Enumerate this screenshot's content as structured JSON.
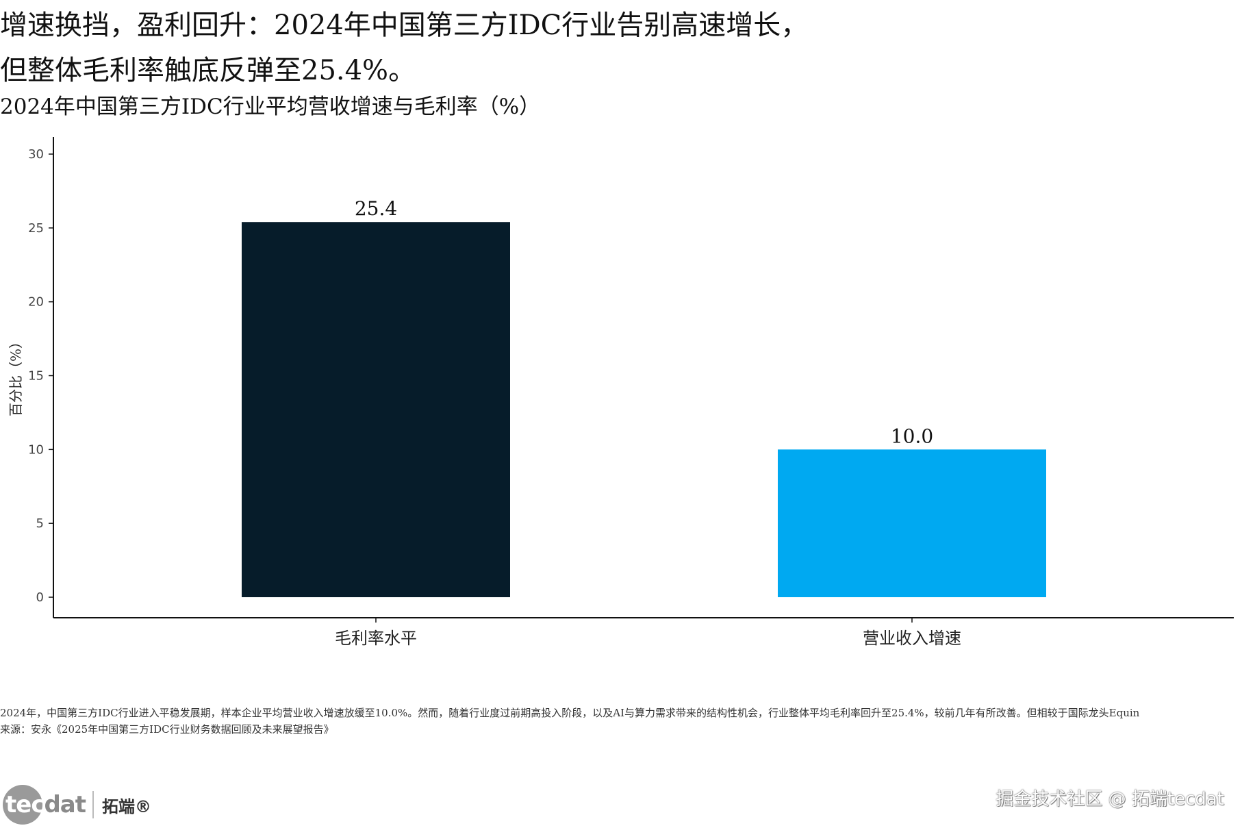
{
  "header": {
    "title_line1": "增速换挡，盈利回升：2024年中国第三方IDC行业告别高速增长，",
    "title_line2": "但整体毛利率触底反弹至25.4%。",
    "subtitle": "2024年中国第三方IDC行业平均营收增速与毛利率（%）"
  },
  "chart_data": {
    "type": "bar",
    "categories": [
      "毛利率水平",
      "营业收入增速"
    ],
    "values": [
      25.4,
      10.0
    ],
    "data_labels": [
      "25.4",
      "10.0"
    ],
    "colors": [
      "#061c2a",
      "#00a9f1"
    ],
    "title": "2024年中国第三方IDC行业平均营收增速与毛利率（%）",
    "xlabel": "",
    "ylabel": "百分比（%）",
    "ylim": [
      0,
      30
    ],
    "yticks": [
      0,
      5,
      10,
      15,
      20,
      25,
      30
    ],
    "grid": false,
    "legend": "none"
  },
  "footer": {
    "note": "2024年，中国第三方IDC行业进入平稳发展期，样本企业平均营业收入增速放缓至10.0%。然而，随着行业度过前期高投入阶段，以及AI与算力需求带来的结构性机会，行业整体平均毛利率回升至25.4%，较前几年有所改善。但相较于国际龙头Equin",
    "source": "来源：安永《2025年中国第三方IDC行业财务数据回顾及未来展望报告》"
  },
  "branding": {
    "logo_tec": "tec",
    "logo_dat": "dat",
    "logo_cn": "拓端®",
    "watermark": "掘金技术社区 @ 拓端tecdat"
  }
}
